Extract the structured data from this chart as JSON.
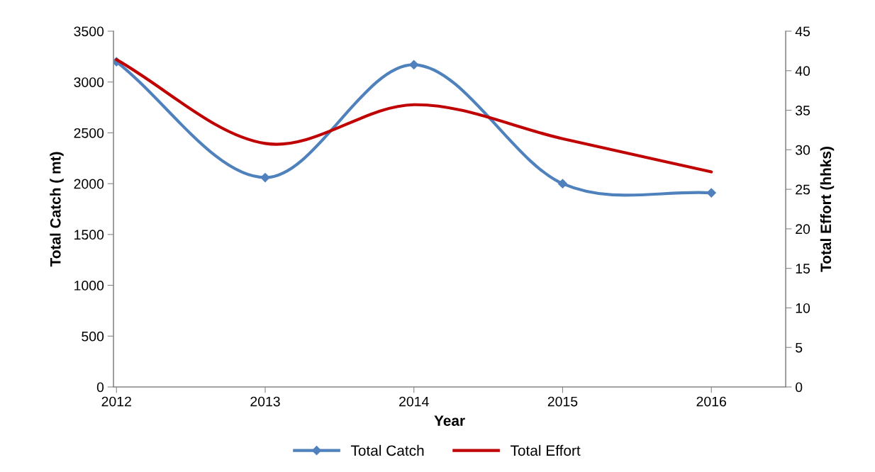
{
  "chart_data": {
    "type": "line",
    "xlabel": "Year",
    "ylabel": "Total Catch ( mt)",
    "y2label": "Total Effort (hhks)",
    "categories": [
      "2012",
      "2013",
      "2014",
      "2015",
      "2016"
    ],
    "series": [
      {
        "name": "Total Catch",
        "color": "#4f81bd",
        "values": [
          3200,
          2060,
          3170,
          2000,
          1910
        ],
        "marker": "diamond"
      },
      {
        "name": "Total Effort",
        "color": "#c00000",
        "values": [
          41.4,
          30.8,
          35.7,
          31.4,
          27.2
        ],
        "axis": "y2",
        "marker": "none"
      }
    ],
    "ylim": [
      0,
      3500
    ],
    "yticks": [
      0,
      500,
      1000,
      1500,
      2000,
      2500,
      3000,
      3500
    ],
    "y2lim": [
      0,
      45
    ],
    "y2ticks": [
      0,
      5,
      10,
      15,
      20,
      25,
      30,
      35,
      40,
      45
    ],
    "grid": false,
    "legend": "bottom",
    "line_style": "solid"
  }
}
